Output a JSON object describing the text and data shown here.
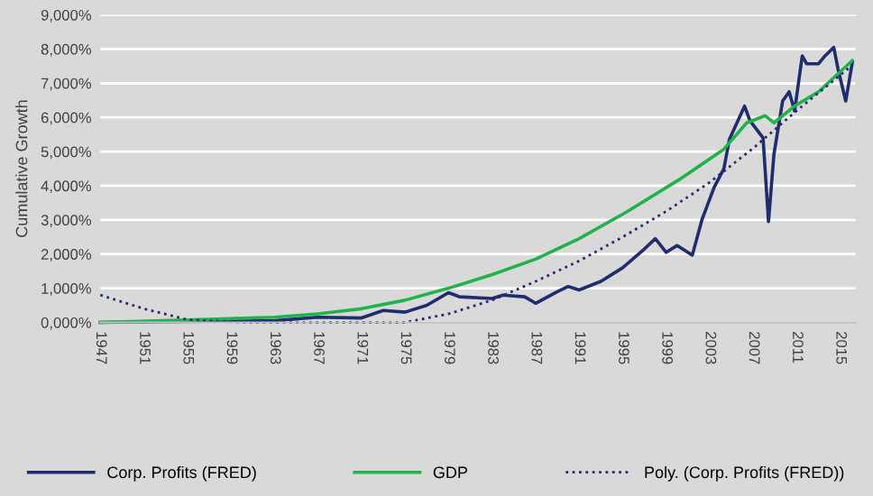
{
  "chart_data": {
    "type": "line",
    "ylabel": "Cumulative Growth",
    "xlim": [
      1947,
      2016.4
    ],
    "xticks": [
      1947,
      1951,
      1955,
      1959,
      1963,
      1967,
      1971,
      1975,
      1979,
      1983,
      1987,
      1991,
      1995,
      1999,
      2003,
      2007,
      2011,
      2015
    ],
    "ylim": [
      0,
      9000
    ],
    "yticks": [
      {
        "value": 0,
        "label": "0,000%"
      },
      {
        "value": 1000,
        "label": "1,000%"
      },
      {
        "value": 2000,
        "label": "2,000%"
      },
      {
        "value": 3000,
        "label": "3,000%"
      },
      {
        "value": 4000,
        "label": "4,000%"
      },
      {
        "value": 5000,
        "label": "5,000%"
      },
      {
        "value": 6000,
        "label": "6,000%"
      },
      {
        "value": 7000,
        "label": "7,000%"
      },
      {
        "value": 8000,
        "label": "8,000%"
      },
      {
        "value": 9000,
        "label": "9,000%"
      }
    ],
    "grid": "y",
    "legend": "bottom",
    "marker": "none",
    "series": [
      {
        "name": "Corp. Profits (FRED)",
        "color": "#1f2d6e",
        "line_style": "solid",
        "x": [
          1947,
          1955,
          1959,
          1963,
          1967,
          1971,
          1973,
          1975,
          1977,
          1979,
          1980,
          1983,
          1984,
          1986,
          1987,
          1989,
          1990,
          1991,
          1993,
          1995,
          1997,
          1998,
          1999,
          2000,
          2001.4,
          2002.3,
          2003.4,
          2004.3,
          2004.8,
          2006.2,
          2006.7,
          2007.9,
          2008.4,
          2008.9,
          2009.7,
          2010.3,
          2010.8,
          2011.5,
          2011.9,
          2013,
          2013.6,
          2014.4,
          2014.8,
          2015.5,
          2016.1
        ],
        "values": [
          0,
          30,
          40,
          50,
          150,
          130,
          350,
          300,
          500,
          870,
          750,
          700,
          800,
          750,
          560,
          900,
          1050,
          950,
          1200,
          1600,
          2150,
          2450,
          2050,
          2250,
          1970,
          3020,
          3950,
          4500,
          5350,
          6330,
          5900,
          5400,
          2950,
          4920,
          6480,
          6750,
          6190,
          7800,
          7570,
          7570,
          7800,
          8050,
          7400,
          6480,
          7600
        ]
      },
      {
        "name": "GDP",
        "color": "#22b24c",
        "line_style": "solid",
        "x": [
          1947,
          1955,
          1963,
          1967,
          1971,
          1975,
          1979,
          1983,
          1987,
          1991,
          1995.4,
          2000.4,
          2004.3,
          2006.4,
          2008.1,
          2008.9,
          2010.8,
          2013,
          2016.1
        ],
        "values": [
          0,
          70,
          150,
          250,
          400,
          650,
          1000,
          1400,
          1850,
          2450,
          3240,
          4220,
          5070,
          5840,
          6050,
          5840,
          6330,
          6750,
          7660
        ]
      },
      {
        "name": "Poly. (Corp. Profits (FRED))",
        "color": "#1f2d6e",
        "line_style": "dotted",
        "x": [
          1947,
          1951,
          1955,
          1960,
          1970,
          1975,
          1979,
          1983,
          1987,
          1991,
          1995,
          1999,
          2003,
          2007,
          2011,
          2016
        ],
        "values": [
          800,
          400,
          80,
          0,
          0,
          0,
          250,
          650,
          1200,
          1800,
          2500,
          3250,
          4100,
          5100,
          6200,
          7500
        ]
      }
    ]
  }
}
